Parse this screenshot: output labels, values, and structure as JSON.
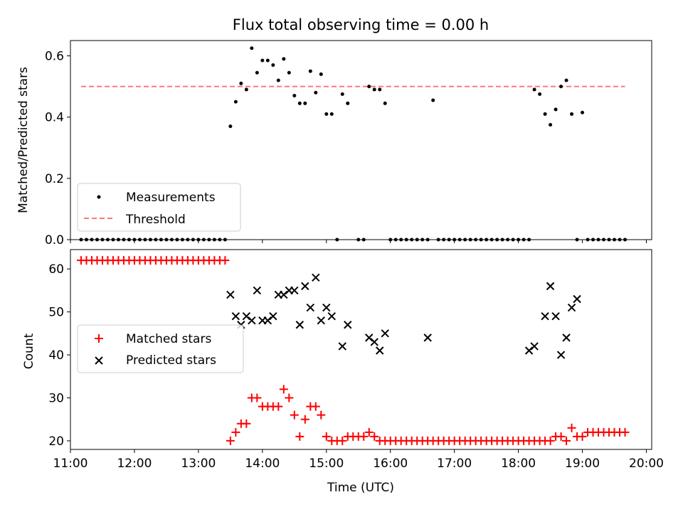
{
  "chart_data": [
    {
      "type": "scatter",
      "title": "Flux total observing time = 0.00 h",
      "xlabel": "",
      "ylabel": "Matched/Predicted stars",
      "ylim": [
        0,
        0.65
      ],
      "yticks": [
        "0.0",
        "0.2",
        "0.4",
        "0.6"
      ],
      "legend": {
        "placement": "lower-left",
        "entries": [
          "Measurements",
          "Threshold"
        ]
      },
      "threshold": {
        "name": "Threshold",
        "y": 0.5,
        "x_start": "11:10",
        "x_end": "19:40",
        "color": "#ff7777"
      },
      "series": [
        {
          "name": "Measurements",
          "color": "#000000",
          "marker": "dot",
          "x": [
            "11:10",
            "11:15",
            "11:20",
            "11:25",
            "11:30",
            "11:35",
            "11:40",
            "11:45",
            "11:50",
            "11:55",
            "12:00",
            "12:05",
            "12:10",
            "12:15",
            "12:20",
            "12:25",
            "12:30",
            "12:35",
            "12:40",
            "12:45",
            "12:50",
            "12:55",
            "13:00",
            "13:05",
            "13:10",
            "13:15",
            "13:20",
            "13:25",
            "13:30",
            "13:35",
            "13:40",
            "13:45",
            "13:50",
            "13:55",
            "14:00",
            "14:05",
            "14:10",
            "14:15",
            "14:20",
            "14:25",
            "14:30",
            "14:35",
            "14:40",
            "14:45",
            "14:50",
            "14:55",
            "15:00",
            "15:05",
            "15:10",
            "15:15",
            "15:20",
            "15:30",
            "15:35",
            "15:40",
            "15:45",
            "15:50",
            "15:55",
            "16:00",
            "16:05",
            "16:10",
            "16:15",
            "16:20",
            "16:25",
            "16:30",
            "16:35",
            "16:40",
            "16:45",
            "16:50",
            "16:55",
            "17:00",
            "17:05",
            "17:10",
            "17:15",
            "17:20",
            "17:25",
            "17:30",
            "17:35",
            "17:40",
            "17:45",
            "17:50",
            "17:55",
            "18:00",
            "18:05",
            "18:10",
            "18:15",
            "18:20",
            "18:25",
            "18:30",
            "18:35",
            "18:40",
            "18:45",
            "18:50",
            "18:55",
            "19:00",
            "19:05",
            "19:10",
            "19:15",
            "19:20",
            "19:25",
            "19:30",
            "19:35",
            "19:40"
          ],
          "y": [
            0,
            0,
            0,
            0,
            0,
            0,
            0,
            0,
            0,
            0,
            0,
            0,
            0,
            0,
            0,
            0,
            0,
            0,
            0,
            0,
            0,
            0,
            0,
            0,
            0,
            0,
            0,
            0,
            0.37,
            0.45,
            0.51,
            0.49,
            0.625,
            0.545,
            0.585,
            0.585,
            0.57,
            0.52,
            0.59,
            0.545,
            0.47,
            0.445,
            0.445,
            0.55,
            0.48,
            0.54,
            0.41,
            0.41,
            0,
            0.475,
            0.445,
            0,
            0,
            0.5,
            0.49,
            0.49,
            0.445,
            0,
            0,
            0,
            0,
            0,
            0,
            0,
            0,
            0.455,
            0,
            0,
            0,
            0,
            0,
            0,
            0,
            0,
            0,
            0,
            0,
            0,
            0,
            0,
            0,
            0,
            0,
            0,
            0.49,
            0.475,
            0.41,
            0.375,
            0.425,
            0.5,
            0.52,
            0.41,
            0,
            0.415,
            0,
            0,
            0,
            0,
            0,
            0,
            0,
            0
          ]
        }
      ]
    },
    {
      "type": "scatter",
      "title": "",
      "xlabel": "Time (UTC)",
      "ylabel": "Count",
      "ylim": [
        18,
        64.5
      ],
      "yticks": [
        "20",
        "30",
        "40",
        "50",
        "60"
      ],
      "xticks": [
        "11:00",
        "12:00",
        "13:00",
        "14:00",
        "15:00",
        "16:00",
        "17:00",
        "18:00",
        "19:00",
        "20:00"
      ],
      "legend": {
        "placement": "center-left",
        "entries": [
          "Matched stars",
          "Predicted stars"
        ]
      },
      "series": [
        {
          "name": "Matched stars",
          "color": "#ff0000",
          "marker": "plus",
          "x": [
            "11:10",
            "11:15",
            "11:20",
            "11:25",
            "11:30",
            "11:35",
            "11:40",
            "11:45",
            "11:50",
            "11:55",
            "12:00",
            "12:05",
            "12:10",
            "12:15",
            "12:20",
            "12:25",
            "12:30",
            "12:35",
            "12:40",
            "12:45",
            "12:50",
            "12:55",
            "13:00",
            "13:05",
            "13:10",
            "13:15",
            "13:20",
            "13:25",
            "13:30",
            "13:35",
            "13:40",
            "13:45",
            "13:50",
            "13:55",
            "14:00",
            "14:05",
            "14:10",
            "14:15",
            "14:20",
            "14:25",
            "14:30",
            "14:35",
            "14:40",
            "14:45",
            "14:50",
            "14:55",
            "15:00",
            "15:05",
            "15:10",
            "15:15",
            "15:20",
            "15:25",
            "15:30",
            "15:35",
            "15:40",
            "15:45",
            "15:50",
            "15:55",
            "16:00",
            "16:05",
            "16:10",
            "16:15",
            "16:20",
            "16:25",
            "16:30",
            "16:35",
            "16:40",
            "16:45",
            "16:50",
            "16:55",
            "17:00",
            "17:05",
            "17:10",
            "17:15",
            "17:20",
            "17:25",
            "17:30",
            "17:35",
            "17:40",
            "17:45",
            "17:50",
            "17:55",
            "18:00",
            "18:05",
            "18:10",
            "18:15",
            "18:20",
            "18:25",
            "18:30",
            "18:35",
            "18:40",
            "18:45",
            "18:50",
            "18:55",
            "19:00",
            "19:05",
            "19:10",
            "19:15",
            "19:20",
            "19:25",
            "19:30",
            "19:35",
            "19:40"
          ],
          "y": [
            62,
            62,
            62,
            62,
            62,
            62,
            62,
            62,
            62,
            62,
            62,
            62,
            62,
            62,
            62,
            62,
            62,
            62,
            62,
            62,
            62,
            62,
            62,
            62,
            62,
            62,
            62,
            62,
            20,
            22,
            24,
            24,
            30,
            30,
            28,
            28,
            28,
            28,
            32,
            30,
            26,
            21,
            25,
            28,
            28,
            26,
            21,
            20,
            20,
            20,
            21,
            21,
            21,
            21,
            22,
            21,
            20,
            20,
            20,
            20,
            20,
            20,
            20,
            20,
            20,
            20,
            20,
            20,
            20,
            20,
            20,
            20,
            20,
            20,
            20,
            20,
            20,
            20,
            20,
            20,
            20,
            20,
            20,
            20,
            20,
            20,
            20,
            20,
            20,
            21,
            21,
            20,
            23,
            21,
            21,
            22,
            22,
            22,
            22,
            22,
            22,
            22,
            22
          ]
        },
        {
          "name": "Predicted stars",
          "color": "#000000",
          "marker": "x",
          "x": [
            "13:30",
            "13:35",
            "13:40",
            "13:45",
            "13:50",
            "13:55",
            "14:00",
            "14:05",
            "14:10",
            "14:15",
            "14:20",
            "14:25",
            "14:30",
            "14:35",
            "14:40",
            "14:45",
            "14:50",
            "14:55",
            "15:00",
            "15:05",
            "15:15",
            "15:20",
            "15:40",
            "15:45",
            "15:50",
            "15:55",
            "16:35",
            "18:10",
            "18:15",
            "18:25",
            "18:30",
            "18:35",
            "18:40",
            "18:45",
            "18:50",
            "18:55"
          ],
          "y": [
            54,
            49,
            47,
            49,
            48,
            55,
            48,
            48,
            49,
            54,
            54,
            55,
            55,
            47,
            56,
            51,
            58,
            48,
            51,
            49,
            42,
            47,
            44,
            43,
            41,
            45,
            44,
            41,
            42,
            49,
            56,
            49,
            40,
            44,
            51,
            53
          ]
        }
      ]
    }
  ]
}
